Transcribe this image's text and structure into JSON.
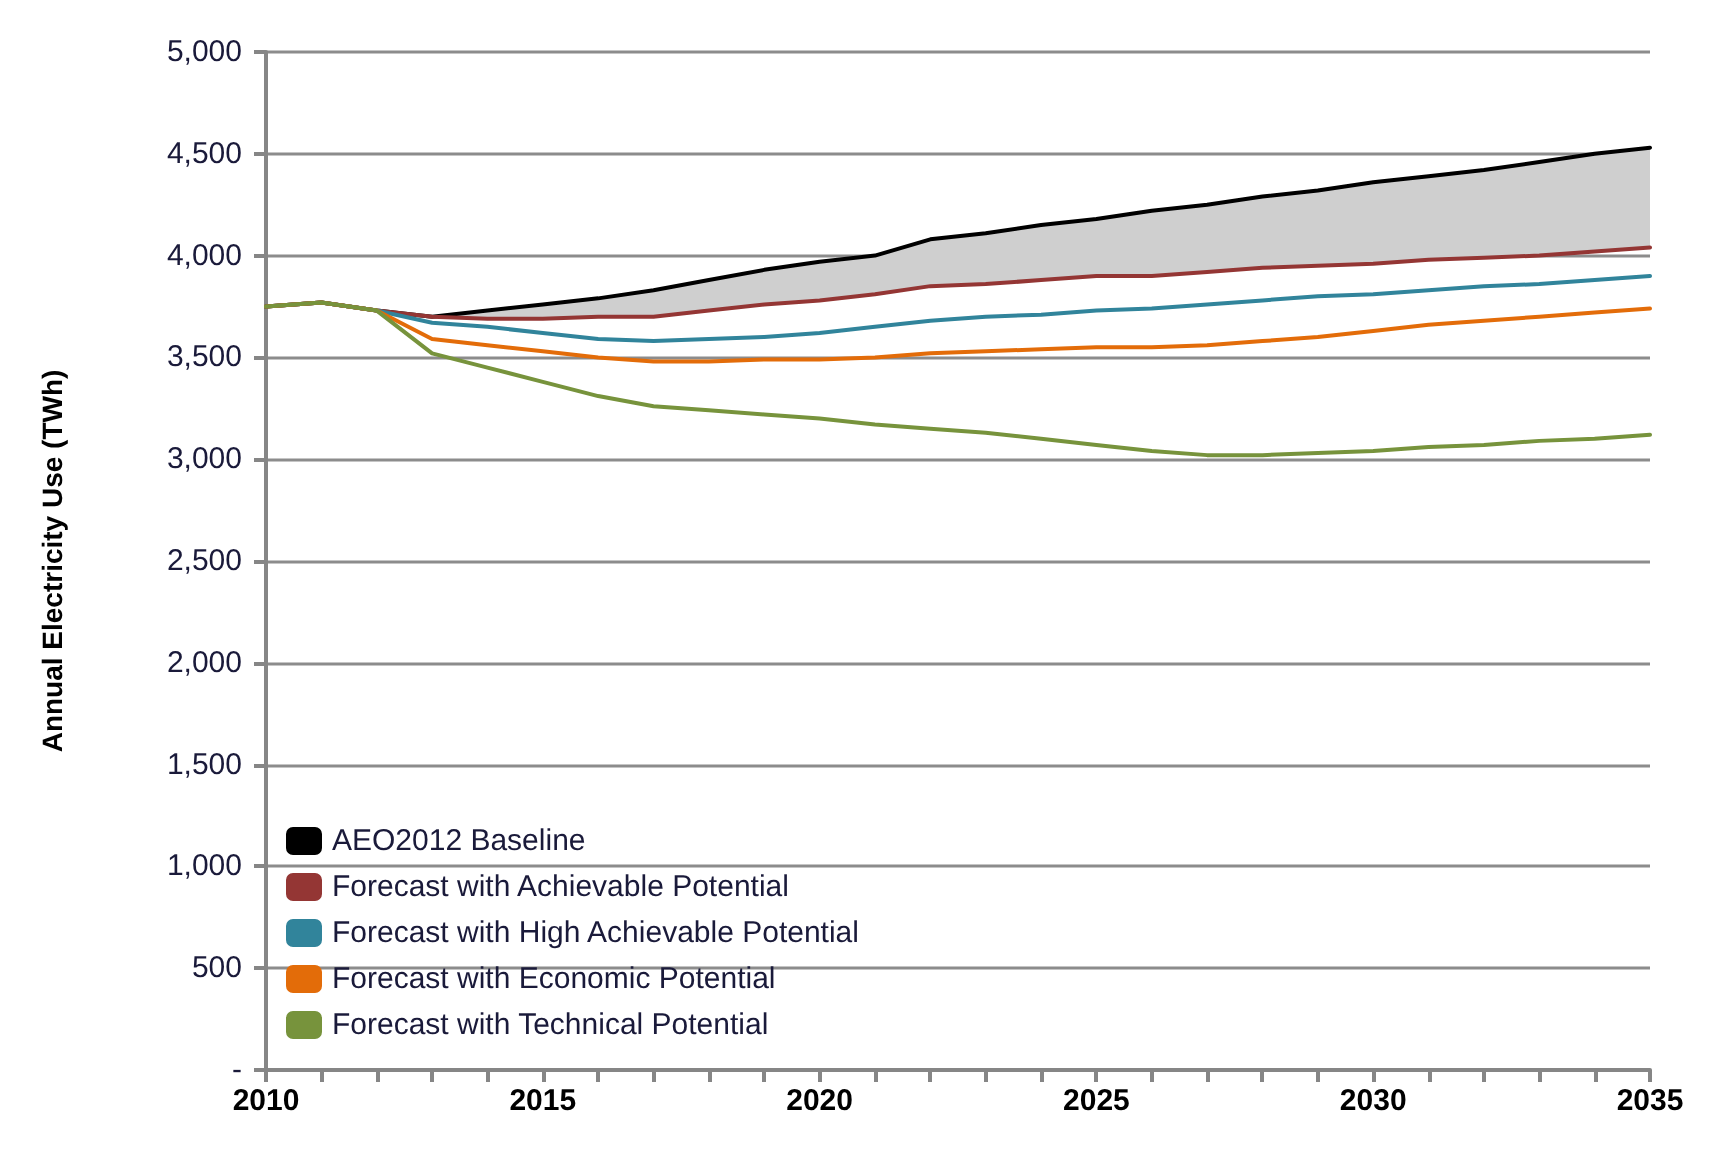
{
  "chart_data": {
    "type": "line",
    "ylabel": "Annual Electricity Use (TWh)",
    "x": [
      2010,
      2011,
      2012,
      2013,
      2014,
      2015,
      2016,
      2017,
      2018,
      2019,
      2020,
      2021,
      2022,
      2023,
      2024,
      2025,
      2026,
      2027,
      2028,
      2029,
      2030,
      2031,
      2032,
      2033,
      2034,
      2035
    ],
    "series": [
      {
        "name": "AEO2012 Baseline",
        "color": "#000000",
        "values": [
          3750,
          3770,
          3730,
          3700,
          3730,
          3760,
          3790,
          3830,
          3880,
          3930,
          3970,
          4000,
          4080,
          4110,
          4150,
          4180,
          4220,
          4250,
          4290,
          4320,
          4360,
          4390,
          4420,
          4460,
          4500,
          4530
        ],
        "lower": [
          3750,
          3770,
          3730,
          3700,
          3690,
          3690,
          3700,
          3700,
          3730,
          3760,
          3780,
          3810,
          3850,
          3860,
          3880,
          3900,
          3900,
          3920,
          3940,
          3950,
          3960,
          3980,
          3990,
          4000,
          4020,
          4040
        ],
        "upper": [
          3750,
          3770,
          3730,
          3700,
          3730,
          3760,
          3790,
          3830,
          3880,
          3930,
          3970,
          4000,
          4080,
          4110,
          4150,
          4180,
          4220,
          4250,
          4290,
          4320,
          4360,
          4390,
          4420,
          4460,
          4500,
          4530
        ]
      },
      {
        "name": "Forecast with Achievable Potential",
        "color": "#943634",
        "values": [
          3750,
          3770,
          3730,
          3700,
          3690,
          3690,
          3700,
          3700,
          3730,
          3760,
          3780,
          3810,
          3850,
          3860,
          3880,
          3900,
          3900,
          3920,
          3940,
          3950,
          3960,
          3980,
          3990,
          4000,
          4020,
          4040
        ]
      },
      {
        "name": "Forecast with High Achievable Potential",
        "color": "#31849b",
        "values": [
          3750,
          3770,
          3730,
          3670,
          3650,
          3620,
          3590,
          3580,
          3590,
          3600,
          3620,
          3650,
          3680,
          3700,
          3710,
          3730,
          3740,
          3760,
          3780,
          3800,
          3810,
          3830,
          3850,
          3860,
          3880,
          3900
        ]
      },
      {
        "name": "Forecast with Economic Potential",
        "color": "#e36c09",
        "values": [
          3750,
          3770,
          3730,
          3590,
          3560,
          3530,
          3500,
          3480,
          3480,
          3490,
          3490,
          3500,
          3520,
          3530,
          3540,
          3550,
          3550,
          3560,
          3580,
          3600,
          3630,
          3660,
          3680,
          3700,
          3720,
          3740
        ]
      },
      {
        "name": "Forecast with Technical Potential",
        "color": "#77933c",
        "values": [
          3750,
          3770,
          3730,
          3520,
          3450,
          3380,
          3310,
          3260,
          3240,
          3220,
          3200,
          3170,
          3150,
          3130,
          3100,
          3070,
          3040,
          3020,
          3020,
          3030,
          3040,
          3060,
          3070,
          3090,
          3100,
          3120
        ]
      }
    ],
    "xlim": [
      2010,
      2035
    ],
    "xticks": [
      2010,
      2015,
      2020,
      2025,
      2030,
      2035
    ],
    "ylim": [
      0,
      5000
    ],
    "yticks": [
      {
        "value": 0,
        "label": "-"
      },
      500,
      {
        "value": 1000,
        "label": "1,000"
      },
      {
        "value": 1500,
        "label": "1,500"
      },
      {
        "value": 2000,
        "label": "2,000"
      },
      {
        "value": 2500,
        "label": "2,500"
      },
      {
        "value": 3000,
        "label": "3,000"
      },
      {
        "value": 3500,
        "label": "3,500"
      },
      {
        "value": 4000,
        "label": "4,000"
      },
      {
        "value": 4500,
        "label": "4,500"
      },
      {
        "value": 5000,
        "label": "5,000"
      }
    ],
    "grid": "y",
    "legend": "bottom left",
    "marker": "none"
  }
}
